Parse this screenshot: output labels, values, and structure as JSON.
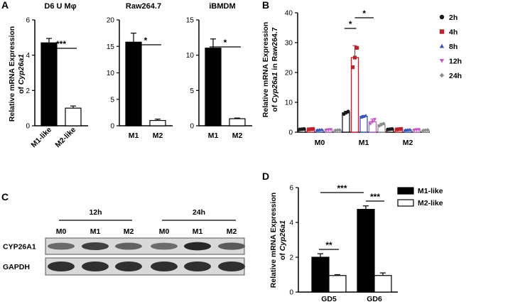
{
  "panel_letters": [
    "A",
    "B",
    "C",
    "D"
  ],
  "chart_data": [
    {
      "panel": "A",
      "type": "bar",
      "title": "D6 U Mφ",
      "ylabel_line1": "Relative mRNA Expression",
      "ylabel_line2": "of Cyp26a1",
      "ylabel_prefix": "of ",
      "ylabel_gene": "Cyp26a1",
      "categories": [
        "M1-like",
        "M2-like"
      ],
      "values": [
        4.7,
        1.0
      ],
      "errors": [
        0.25,
        0.12
      ],
      "fills": [
        "#000000",
        "#ffffff"
      ],
      "ylim": [
        0,
        6
      ],
      "yticks": [
        "0",
        "2",
        "4",
        "6"
      ],
      "significance": [
        "***"
      ]
    },
    {
      "panel": "A",
      "type": "bar",
      "title": "Raw264.7",
      "categories": [
        "M1",
        "M2"
      ],
      "values": [
        15.8,
        1.0
      ],
      "errors": [
        1.7,
        0.25
      ],
      "fills": [
        "#000000",
        "#ffffff"
      ],
      "ylim": [
        0,
        20
      ],
      "yticks": [
        "0",
        "5",
        "10",
        "15",
        "20"
      ],
      "significance": [
        "*"
      ]
    },
    {
      "panel": "A",
      "type": "bar",
      "title": "iBMDM",
      "categories": [
        "M1",
        "M2"
      ],
      "values": [
        11.0,
        1.0
      ],
      "errors": [
        1.3,
        0.1
      ],
      "fills": [
        "#000000",
        "#ffffff"
      ],
      "ylim": [
        0,
        15
      ],
      "yticks": [
        "0",
        "5",
        "10",
        "15"
      ],
      "significance": [
        "*"
      ]
    },
    {
      "panel": "B",
      "type": "bar",
      "ylabel_line1": "Relative mRNA Expression",
      "ylabel_prefix": "of ",
      "ylabel_gene": "Cyp26a1",
      "ylabel_suffix": " in Raw264.7",
      "categories": [
        "M0",
        "M1",
        "M2"
      ],
      "series": [
        {
          "name": "2h",
          "color": "#1a1a1a",
          "marker": "circle",
          "values": [
            1.0,
            6.5,
            1.0
          ],
          "errors": [
            0.1,
            0.5,
            0.1
          ]
        },
        {
          "name": "4h",
          "color": "#b8252e",
          "marker": "square",
          "values": [
            1.0,
            25.0,
            1.0
          ],
          "errors": [
            0.1,
            4.0,
            0.1
          ]
        },
        {
          "name": "8h",
          "color": "#3a55b4",
          "marker": "triangle",
          "values": [
            0.8,
            5.3,
            0.8
          ],
          "errors": [
            0.1,
            0.3,
            0.1
          ]
        },
        {
          "name": "12h",
          "color": "#c45bc4",
          "marker": "tri-down",
          "values": [
            0.8,
            3.5,
            0.8
          ],
          "errors": [
            0.1,
            0.9,
            0.1
          ]
        },
        {
          "name": "24h",
          "color": "#8c8c8c",
          "marker": "diamond",
          "values": [
            0.7,
            2.5,
            0.7
          ],
          "errors": [
            0.1,
            0.5,
            0.1
          ]
        }
      ],
      "ylim": [
        0,
        40
      ],
      "yticks": [
        "0",
        "10",
        "20",
        "30",
        "40"
      ],
      "significance": [
        "*",
        "*"
      ]
    },
    {
      "panel": "D",
      "type": "bar",
      "ylabel_line1": "Relative mRNA Expression",
      "ylabel_prefix": "of ",
      "ylabel_gene": "Cyp26a1",
      "categories": [
        "GD5",
        "GD6"
      ],
      "series": [
        {
          "name": "M1-like",
          "color": "#000000",
          "values": [
            2.0,
            4.75
          ],
          "errors": [
            0.2,
            0.2
          ]
        },
        {
          "name": "M2-like",
          "color": "#ffffff",
          "values": [
            0.95,
            0.95
          ],
          "errors": [
            0.05,
            0.15
          ]
        }
      ],
      "ylim": [
        0,
        6
      ],
      "yticks": [
        "0",
        "2",
        "4",
        "6"
      ],
      "significance": [
        "**",
        "***",
        "***"
      ]
    }
  ],
  "blot": {
    "time_groups": [
      "12h",
      "24h"
    ],
    "lane_labels": [
      "M0",
      "M1",
      "M2",
      "M0",
      "M1",
      "M2"
    ],
    "row_labels": [
      "CYP26A1",
      "GAPDH"
    ],
    "band_intensity": {
      "CYP26A1": [
        0.55,
        0.8,
        0.6,
        0.55,
        0.95,
        0.65
      ],
      "GAPDH": [
        0.9,
        0.9,
        0.9,
        0.9,
        0.9,
        0.9
      ]
    }
  }
}
